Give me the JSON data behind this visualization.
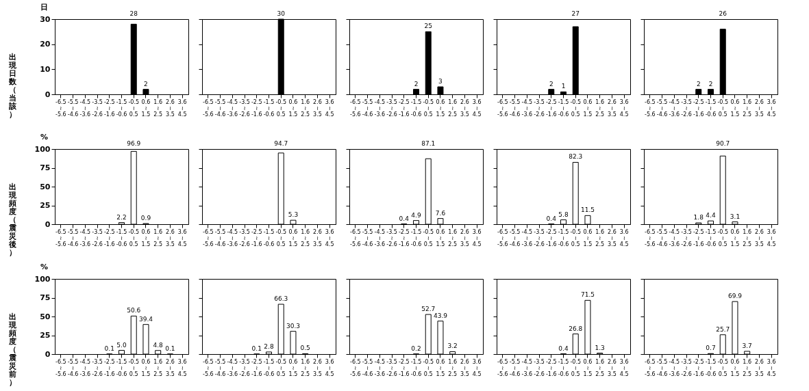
{
  "chart_data": [
    {
      "type": "bar",
      "ylabel": "出現日数（当該）",
      "annotations": [
        "日"
      ],
      "categories": [
        "-6.5\n≀\n-5.6",
        "-5.5\n≀\n-4.6",
        "-4.5\n≀\n-3.6",
        "-3.5\n≀\n-2.6",
        "-2.5\n≀\n-1.6",
        "-1.5\n≀\n-0.6",
        "-0.5\n≀\n0.5",
        "0.6\n≀\n1.5",
        "1.6\n≀\n2.5",
        "2.6\n≀\n3.5",
        "3.6\n≀\n4.5"
      ],
      "values": [
        0,
        0,
        0,
        0,
        0,
        0,
        28,
        2,
        0,
        0,
        0
      ],
      "value_labels": [
        null,
        null,
        null,
        null,
        null,
        null,
        "28",
        "2",
        null,
        null,
        null
      ],
      "color": "#000000",
      "ylim": [
        0,
        30
      ],
      "yticks": [
        0,
        10,
        20,
        30
      ]
    },
    {
      "type": "bar",
      "tick_labels": "x",
      "categories": [
        "-6.5\n≀\n-5.6",
        "-5.5\n≀\n-4.6",
        "-4.5\n≀\n-3.6",
        "-3.5\n≀\n-2.6",
        "-2.5\n≀\n-1.6",
        "-1.5\n≀\n-0.6",
        "-0.5\n≀\n0.5",
        "0.6\n≀\n1.5",
        "1.6\n≀\n2.5",
        "2.6\n≀\n3.5",
        "3.6\n≀\n4.5"
      ],
      "values": [
        0,
        0,
        0,
        0,
        0,
        0,
        30,
        0,
        0,
        0,
        0
      ],
      "value_labels": [
        null,
        null,
        null,
        null,
        null,
        null,
        "30",
        null,
        null,
        null,
        null
      ],
      "color": "#000000",
      "ylim": [
        0,
        30
      ],
      "yticks": [
        0,
        10,
        20,
        30
      ]
    },
    {
      "type": "bar",
      "tick_labels": "x",
      "categories": [
        "-6.5\n≀\n-5.6",
        "-5.5\n≀\n-4.6",
        "-4.5\n≀\n-3.6",
        "-3.5\n≀\n-2.6",
        "-2.5\n≀\n-1.6",
        "-1.5\n≀\n-0.6",
        "-0.5\n≀\n0.5",
        "0.6\n≀\n1.5",
        "1.6\n≀\n2.5",
        "2.6\n≀\n3.5",
        "3.6\n≀\n4.5"
      ],
      "values": [
        0,
        0,
        0,
        0,
        0,
        2,
        25,
        3,
        0,
        0,
        0
      ],
      "value_labels": [
        null,
        null,
        null,
        null,
        null,
        "2",
        "25",
        "3",
        null,
        null,
        null
      ],
      "color": "#000000",
      "ylim": [
        0,
        30
      ],
      "yticks": [
        0,
        10,
        20,
        30
      ]
    },
    {
      "type": "bar",
      "tick_labels": "x",
      "categories": [
        "-6.5\n≀\n-5.6",
        "-5.5\n≀\n-4.6",
        "-4.5\n≀\n-3.6",
        "-3.5\n≀\n-2.6",
        "-2.5\n≀\n-1.6",
        "-1.5\n≀\n-0.6",
        "-0.5\n≀\n0.5",
        "0.6\n≀\n1.5",
        "1.6\n≀\n2.5",
        "2.6\n≀\n3.5",
        "3.6\n≀\n4.5"
      ],
      "values": [
        0,
        0,
        0,
        0,
        2,
        1,
        27,
        0,
        0,
        0,
        0
      ],
      "value_labels": [
        null,
        null,
        null,
        null,
        "2",
        "1",
        "27",
        null,
        null,
        null,
        null
      ],
      "color": "#000000",
      "ylim": [
        0,
        30
      ],
      "yticks": [
        0,
        10,
        20,
        30
      ]
    },
    {
      "type": "bar",
      "tick_labels": "x",
      "categories": [
        "-6.5\n≀\n-5.6",
        "-5.5\n≀\n-4.6",
        "-4.5\n≀\n-3.6",
        "-3.5\n≀\n-2.6",
        "-2.5\n≀\n-1.6",
        "-1.5\n≀\n-0.6",
        "-0.5\n≀\n0.5",
        "0.6\n≀\n1.5",
        "1.6\n≀\n2.5",
        "2.6\n≀\n3.5",
        "3.6\n≀\n4.5"
      ],
      "values": [
        0,
        0,
        0,
        0,
        2,
        2,
        26,
        0,
        0,
        0,
        0
      ],
      "value_labels": [
        null,
        null,
        null,
        null,
        "2",
        "2",
        "26",
        null,
        null,
        null,
        null
      ],
      "color": "#000000",
      "ylim": [
        0,
        30
      ],
      "yticks": [
        0,
        10,
        20,
        30
      ]
    },
    {
      "type": "bar",
      "ylabel": "出現頻度（震災後）",
      "annotations": [
        "%"
      ],
      "categories": [
        "-6.5\n≀\n-5.6",
        "-5.5\n≀\n-4.6",
        "-4.5\n≀\n-3.6",
        "-3.5\n≀\n-2.6",
        "-2.5\n≀\n-1.6",
        "-1.5\n≀\n-0.6",
        "-0.5\n≀\n0.5",
        "0.6\n≀\n1.5",
        "1.6\n≀\n2.5",
        "2.6\n≀\n3.5",
        "3.6\n≀\n4.5"
      ],
      "values": [
        0,
        0,
        0,
        0,
        0,
        2.2,
        96.9,
        0.9,
        0,
        0,
        0
      ],
      "value_labels": [
        null,
        null,
        null,
        null,
        null,
        "2.2",
        "96.9",
        "0.9",
        null,
        null,
        null
      ],
      "color": "#ffffff",
      "ylim": [
        0,
        100
      ],
      "yticks": [
        0,
        25,
        50,
        75,
        100
      ]
    },
    {
      "type": "bar",
      "tick_labels": "x",
      "categories": [
        "-6.5\n≀\n-5.6",
        "-5.5\n≀\n-4.6",
        "-4.5\n≀\n-3.6",
        "-3.5\n≀\n-2.6",
        "-2.5\n≀\n-1.6",
        "-1.5\n≀\n-0.6",
        "-0.5\n≀\n0.5",
        "0.6\n≀\n1.5",
        "1.6\n≀\n2.5",
        "2.6\n≀\n3.5",
        "3.6\n≀\n4.5"
      ],
      "values": [
        0,
        0,
        0,
        0,
        0,
        0,
        94.7,
        5.3,
        0,
        0,
        0
      ],
      "value_labels": [
        null,
        null,
        null,
        null,
        null,
        null,
        "94.7",
        "5.3",
        null,
        null,
        null
      ],
      "color": "#ffffff",
      "ylim": [
        0,
        100
      ],
      "yticks": [
        0,
        25,
        50,
        75,
        100
      ]
    },
    {
      "type": "bar",
      "tick_labels": "x",
      "categories": [
        "-6.5\n≀\n-5.6",
        "-5.5\n≀\n-4.6",
        "-4.5\n≀\n-3.6",
        "-3.5\n≀\n-2.6",
        "-2.5\n≀\n-1.6",
        "-1.5\n≀\n-0.6",
        "-0.5\n≀\n0.5",
        "0.6\n≀\n1.5",
        "1.6\n≀\n2.5",
        "2.6\n≀\n3.5",
        "3.6\n≀\n4.5"
      ],
      "values": [
        0,
        0,
        0,
        0,
        0.4,
        4.9,
        87.1,
        7.6,
        0,
        0,
        0
      ],
      "value_labels": [
        null,
        null,
        null,
        null,
        "0.4",
        "4.9",
        "87.1",
        "7.6",
        null,
        null,
        null
      ],
      "color": "#ffffff",
      "ylim": [
        0,
        100
      ],
      "yticks": [
        0,
        25,
        50,
        75,
        100
      ]
    },
    {
      "type": "bar",
      "tick_labels": "x",
      "categories": [
        "-6.5\n≀\n-5.6",
        "-5.5\n≀\n-4.6",
        "-4.5\n≀\n-3.6",
        "-3.5\n≀\n-2.6",
        "-2.5\n≀\n-1.6",
        "-1.5\n≀\n-0.6",
        "-0.5\n≀\n0.5",
        "0.6\n≀\n1.5",
        "1.6\n≀\n2.5",
        "2.6\n≀\n3.5",
        "3.6\n≀\n4.5"
      ],
      "values": [
        0,
        0,
        0,
        0,
        0.4,
        5.8,
        82.3,
        11.5,
        0,
        0,
        0
      ],
      "value_labels": [
        null,
        null,
        null,
        null,
        "0.4",
        "5.8",
        "82.3",
        "11.5",
        null,
        null,
        null
      ],
      "color": "#ffffff",
      "ylim": [
        0,
        100
      ],
      "yticks": [
        0,
        25,
        50,
        75,
        100
      ]
    },
    {
      "type": "bar",
      "tick_labels": "x",
      "categories": [
        "-6.5\n≀\n-5.6",
        "-5.5\n≀\n-4.6",
        "-4.5\n≀\n-3.6",
        "-3.5\n≀\n-2.6",
        "-2.5\n≀\n-1.6",
        "-1.5\n≀\n-0.6",
        "-0.5\n≀\n0.5",
        "0.6\n≀\n1.5",
        "1.6\n≀\n2.5",
        "2.6\n≀\n3.5",
        "3.6\n≀\n4.5"
      ],
      "values": [
        0,
        0,
        0,
        0,
        1.8,
        4.4,
        90.7,
        3.1,
        0,
        0,
        0
      ],
      "value_labels": [
        null,
        null,
        null,
        null,
        "1.8",
        "4.4",
        "90.7",
        "3.1",
        null,
        null,
        null
      ],
      "color": "#ffffff",
      "ylim": [
        0,
        100
      ],
      "yticks": [
        0,
        25,
        50,
        75,
        100
      ]
    },
    {
      "type": "bar",
      "ylabel": "出現頻度（震災前）",
      "annotations": [
        "%"
      ],
      "categories": [
        "-6.5\n≀\n-5.6",
        "-5.5\n≀\n-4.6",
        "-4.5\n≀\n-3.6",
        "-3.5\n≀\n-2.6",
        "-2.5\n≀\n-1.6",
        "-1.5\n≀\n-0.6",
        "-0.5\n≀\n0.5",
        "0.6\n≀\n1.5",
        "1.6\n≀\n2.5",
        "2.6\n≀\n3.5",
        "3.6\n≀\n4.5"
      ],
      "values": [
        0,
        0,
        0,
        0,
        0.1,
        5.0,
        50.6,
        39.4,
        4.8,
        0.1,
        0
      ],
      "value_labels": [
        null,
        null,
        null,
        null,
        "0.1",
        "5.0",
        "50.6",
        "39.4",
        "4.8",
        "0.1",
        null
      ],
      "color": "#ffffff",
      "ylim": [
        0,
        100
      ],
      "yticks": [
        0,
        25,
        50,
        75,
        100
      ]
    },
    {
      "type": "bar",
      "tick_labels": "x",
      "categories": [
        "-6.5\n≀\n-5.6",
        "-5.5\n≀\n-4.6",
        "-4.5\n≀\n-3.6",
        "-3.5\n≀\n-2.6",
        "-2.5\n≀\n-1.6",
        "-1.5\n≀\n-0.6",
        "-0.5\n≀\n0.5",
        "0.6\n≀\n1.5",
        "1.6\n≀\n2.5",
        "2.6\n≀\n3.5",
        "3.6\n≀\n4.5"
      ],
      "values": [
        0,
        0,
        0,
        0,
        0.1,
        2.8,
        66.3,
        30.3,
        0.5,
        0,
        0
      ],
      "value_labels": [
        null,
        null,
        null,
        null,
        "0.1",
        "2.8",
        "66.3",
        "30.3",
        "0.5",
        null,
        null
      ],
      "color": "#ffffff",
      "ylim": [
        0,
        100
      ],
      "yticks": [
        0,
        25,
        50,
        75,
        100
      ]
    },
    {
      "type": "bar",
      "tick_labels": "x",
      "categories": [
        "-6.5\n≀\n-5.6",
        "-5.5\n≀\n-4.6",
        "-4.5\n≀\n-3.6",
        "-3.5\n≀\n-2.6",
        "-2.5\n≀\n-1.6",
        "-1.5\n≀\n-0.6",
        "-0.5\n≀\n0.5",
        "0.6\n≀\n1.5",
        "1.6\n≀\n2.5",
        "2.6\n≀\n3.5",
        "3.6\n≀\n4.5"
      ],
      "values": [
        0,
        0,
        0,
        0,
        0,
        0.2,
        52.7,
        43.9,
        3.2,
        0,
        0
      ],
      "value_labels": [
        null,
        null,
        null,
        null,
        null,
        "0.2",
        "52.7",
        "43.9",
        "3.2",
        null,
        null
      ],
      "color": "#ffffff",
      "ylim": [
        0,
        100
      ],
      "yticks": [
        0,
        25,
        50,
        75,
        100
      ]
    },
    {
      "type": "bar",
      "tick_labels": "x",
      "categories": [
        "-6.5\n≀\n-5.6",
        "-5.5\n≀\n-4.6",
        "-4.5\n≀\n-3.6",
        "-3.5\n≀\n-2.6",
        "-2.5\n≀\n-1.6",
        "-1.5\n≀\n-0.6",
        "-0.5\n≀\n0.5",
        "0.6\n≀\n1.5",
        "1.6\n≀\n2.5",
        "2.6\n≀\n3.5",
        "3.6\n≀\n4.5"
      ],
      "values": [
        0,
        0,
        0,
        0,
        0,
        0.4,
        26.8,
        71.5,
        1.3,
        0,
        0
      ],
      "value_labels": [
        null,
        null,
        null,
        null,
        null,
        "0.4",
        "26.8",
        "71.5",
        "1.3",
        null,
        null
      ],
      "color": "#ffffff",
      "ylim": [
        0,
        100
      ],
      "yticks": [
        0,
        25,
        50,
        75,
        100
      ]
    },
    {
      "type": "bar",
      "tick_labels": "x",
      "categories": [
        "-6.5\n≀\n-5.6",
        "-5.5\n≀\n-4.6",
        "-4.5\n≀\n-3.6",
        "-3.5\n≀\n-2.6",
        "-2.5\n≀\n-1.6",
        "-1.5\n≀\n-0.6",
        "-0.5\n≀\n0.5",
        "0.6\n≀\n1.5",
        "1.6\n≀\n2.5",
        "2.6\n≀\n3.5",
        "3.6\n≀\n4.5"
      ],
      "values": [
        0,
        0,
        0,
        0,
        0,
        0.7,
        25.7,
        69.9,
        3.7,
        0,
        0
      ],
      "value_labels": [
        null,
        null,
        null,
        null,
        null,
        "0.7",
        "25.7",
        "69.9",
        "3.7",
        null,
        null
      ],
      "color": "#ffffff",
      "ylim": [
        0,
        100
      ],
      "yticks": [
        0,
        25,
        50,
        75,
        100
      ]
    }
  ]
}
